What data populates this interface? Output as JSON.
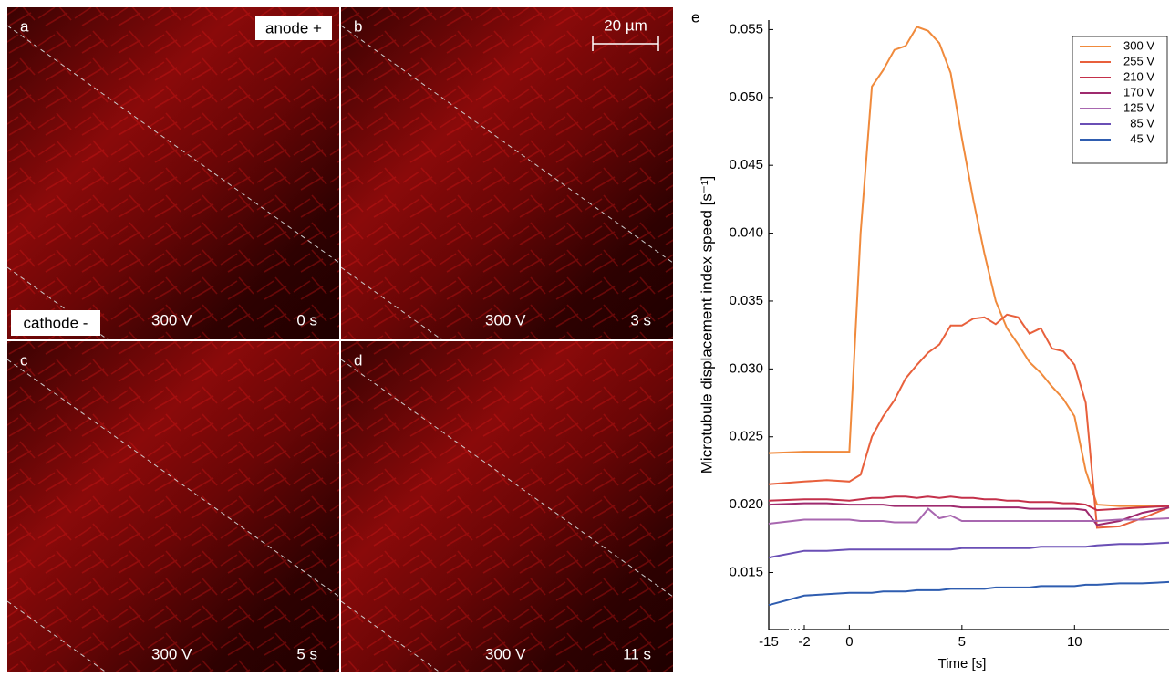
{
  "panels": [
    {
      "letter": "a",
      "voltage": "300 V",
      "time": "0 s"
    },
    {
      "letter": "b",
      "voltage": "300 V",
      "time": "3 s"
    },
    {
      "letter": "c",
      "voltage": "300 V",
      "time": "5 s"
    },
    {
      "letter": "d",
      "voltage": "300 V",
      "time": "11 s"
    }
  ],
  "anode": "anode +",
  "cathode": "cathode -",
  "scale_bar": "20 µm",
  "chart_data": {
    "type": "line",
    "panel_letter": "e",
    "x_label": "Time [s]",
    "y_label": "Microtubule displacement index speed [s⁻¹]",
    "axis_break": true,
    "x": [
      -15,
      -2,
      -1,
      0,
      0.5,
      1,
      1.5,
      2,
      2.5,
      3,
      3.5,
      4,
      4.5,
      5,
      5.5,
      6,
      6.5,
      7,
      7.5,
      8,
      8.5,
      9,
      9.5,
      10,
      10.5,
      11,
      12,
      13,
      14.2
    ],
    "xlim": [
      -15,
      14.2
    ],
    "xticks": [
      -15,
      -2,
      0,
      5,
      10
    ],
    "ylim": [
      0.0108,
      0.0557
    ],
    "yticks": [
      0.015,
      {
        "value": 0.02,
        "label": "0.020"
      },
      0.025,
      {
        "value": 0.03,
        "label": "0.030"
      },
      0.035,
      {
        "value": 0.04,
        "label": "0.040"
      },
      0.045,
      {
        "value": 0.05,
        "label": "0.050"
      },
      0.055
    ],
    "legend": "top-right",
    "series": [
      {
        "name": "300 V",
        "color": "#f08a3c",
        "values": [
          0.0238,
          0.0239,
          0.0239,
          0.0239,
          0.04,
          0.0508,
          0.052,
          0.0535,
          0.0538,
          0.0552,
          0.0549,
          0.054,
          0.0518,
          0.047,
          0.0425,
          0.0385,
          0.035,
          0.033,
          0.0318,
          0.0305,
          0.0297,
          0.0287,
          0.0278,
          0.0265,
          0.0225,
          0.02,
          0.0199,
          0.0199,
          0.0199
        ]
      },
      {
        "name": "255 V",
        "color": "#e8603c",
        "values": [
          0.0215,
          0.0217,
          0.0218,
          0.0217,
          0.0222,
          0.025,
          0.0265,
          0.0277,
          0.0293,
          0.0303,
          0.0312,
          0.0318,
          0.0332,
          0.0332,
          0.0337,
          0.0338,
          0.0333,
          0.034,
          0.0338,
          0.0326,
          0.033,
          0.0315,
          0.0313,
          0.0303,
          0.0275,
          0.0183,
          0.0184,
          0.019,
          0.0198
        ]
      },
      {
        "name": "210 V",
        "color": "#c4304a",
        "values": [
          0.0203,
          0.0204,
          0.0204,
          0.0203,
          0.0204,
          0.0205,
          0.0205,
          0.0206,
          0.0206,
          0.0205,
          0.0206,
          0.0205,
          0.0206,
          0.0205,
          0.0205,
          0.0204,
          0.0204,
          0.0203,
          0.0203,
          0.0202,
          0.0202,
          0.0202,
          0.0201,
          0.0201,
          0.02,
          0.0196,
          0.0197,
          0.0198,
          0.0199
        ]
      },
      {
        "name": "170 V",
        "color": "#9e2a6e",
        "values": [
          0.02,
          0.0201,
          0.0201,
          0.02,
          0.02,
          0.02,
          0.02,
          0.0199,
          0.0199,
          0.0199,
          0.0199,
          0.0199,
          0.0199,
          0.0198,
          0.0198,
          0.0198,
          0.0198,
          0.0198,
          0.0198,
          0.0197,
          0.0197,
          0.0197,
          0.0197,
          0.0197,
          0.0196,
          0.0185,
          0.0188,
          0.0194,
          0.0198
        ]
      },
      {
        "name": "125 V",
        "color": "#a867b0",
        "values": [
          0.0186,
          0.0189,
          0.0189,
          0.0189,
          0.0188,
          0.0188,
          0.0188,
          0.0187,
          0.0187,
          0.0187,
          0.0197,
          0.019,
          0.0192,
          0.0188,
          0.0188,
          0.0188,
          0.0188,
          0.0188,
          0.0188,
          0.0188,
          0.0188,
          0.0188,
          0.0188,
          0.0188,
          0.0188,
          0.0188,
          0.0189,
          0.0189,
          0.019
        ]
      },
      {
        "name": "85 V",
        "color": "#6a4fb5",
        "values": [
          0.0161,
          0.0166,
          0.0166,
          0.0167,
          0.0167,
          0.0167,
          0.0167,
          0.0167,
          0.0167,
          0.0167,
          0.0167,
          0.0167,
          0.0167,
          0.0168,
          0.0168,
          0.0168,
          0.0168,
          0.0168,
          0.0168,
          0.0168,
          0.0169,
          0.0169,
          0.0169,
          0.0169,
          0.0169,
          0.017,
          0.0171,
          0.0171,
          0.0172
        ]
      },
      {
        "name": "45 V",
        "color": "#2f5db0",
        "values": [
          0.0126,
          0.0133,
          0.0134,
          0.0135,
          0.0135,
          0.0135,
          0.0136,
          0.0136,
          0.0136,
          0.0137,
          0.0137,
          0.0137,
          0.0138,
          0.0138,
          0.0138,
          0.0138,
          0.0139,
          0.0139,
          0.0139,
          0.0139,
          0.014,
          0.014,
          0.014,
          0.014,
          0.0141,
          0.0141,
          0.0142,
          0.0142,
          0.0143
        ]
      }
    ]
  }
}
